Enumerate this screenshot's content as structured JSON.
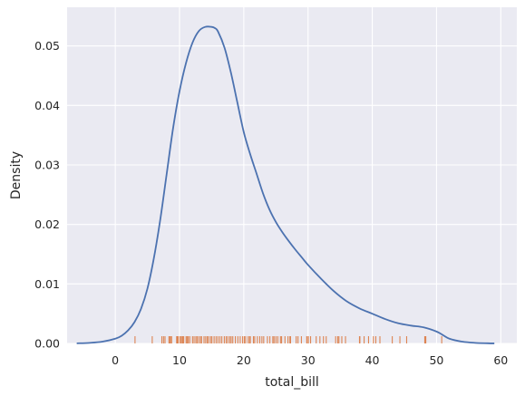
{
  "chart_data": {
    "type": "line",
    "title": "",
    "xlabel": "total_bill",
    "ylabel": "Density",
    "xlim": [
      -7.5,
      62.5
    ],
    "ylim": [
      0,
      0.0565
    ],
    "xticks": [
      0,
      10,
      20,
      30,
      40,
      50,
      60
    ],
    "yticks": [
      0.0,
      0.01,
      0.02,
      0.03,
      0.04,
      0.05
    ],
    "ytick_labels": [
      "0.00",
      "0.01",
      "0.02",
      "0.03",
      "0.04",
      "0.05"
    ],
    "grid": true,
    "style": "seaborn-darkgrid",
    "colors": {
      "background": "#EAEAF2",
      "grid": "#FFFFFF",
      "kde": "#4C72B0",
      "rug": "#DD8452"
    },
    "series": [
      {
        "kind": "kde",
        "x": [
          -6,
          -4,
          -2,
          0,
          1,
          2,
          3,
          4,
          5,
          6,
          7,
          8,
          9,
          10,
          11,
          12,
          13,
          14,
          15,
          15.5,
          16,
          17,
          18,
          19,
          20,
          21,
          22,
          23,
          24,
          25,
          26,
          27,
          28,
          29,
          30,
          32,
          34,
          36,
          38,
          40,
          42,
          44,
          46,
          48,
          50,
          51,
          52,
          54,
          56,
          58,
          59
        ],
        "y": [
          2e-05,
          0.0001,
          0.0003,
          0.0008,
          0.0013,
          0.0022,
          0.0036,
          0.0058,
          0.0092,
          0.0143,
          0.0208,
          0.0285,
          0.0362,
          0.0424,
          0.0471,
          0.0505,
          0.0525,
          0.0532,
          0.0532,
          0.053,
          0.0524,
          0.0497,
          0.0455,
          0.0405,
          0.0355,
          0.0318,
          0.0285,
          0.0252,
          0.0225,
          0.0204,
          0.0187,
          0.0172,
          0.0158,
          0.0145,
          0.0132,
          0.0109,
          0.0088,
          0.0071,
          0.0059,
          0.005,
          0.0041,
          0.0034,
          0.003,
          0.0027,
          0.002,
          0.0014,
          0.0008,
          0.0003,
          0.0001,
          3e-05,
          1e-05
        ]
      },
      {
        "kind": "rug",
        "x": [
          3.07,
          5.75,
          7.25,
          7.51,
          7.74,
          8.35,
          8.51,
          8.52,
          8.58,
          8.77,
          9.55,
          9.6,
          9.68,
          9.78,
          10.07,
          10.27,
          10.33,
          10.51,
          10.65,
          11.02,
          11.17,
          11.35,
          11.59,
          12.02,
          12.26,
          12.54,
          12.74,
          13.0,
          13.27,
          13.42,
          13.81,
          14.07,
          14.31,
          14.52,
          14.83,
          15.04,
          15.38,
          15.69,
          15.98,
          16.29,
          16.58,
          16.97,
          17.26,
          17.51,
          17.82,
          18.04,
          18.29,
          18.69,
          19.08,
          19.44,
          19.82,
          20.08,
          20.29,
          20.69,
          20.92,
          21.01,
          21.5,
          21.7,
          22.12,
          22.49,
          22.82,
          23.1,
          23.68,
          24.06,
          24.52,
          24.71,
          25.0,
          25.29,
          25.71,
          25.89,
          26.41,
          26.88,
          27.18,
          27.28,
          28.15,
          28.44,
          28.97,
          29.8,
          29.85,
          30.06,
          30.4,
          31.27,
          31.85,
          32.4,
          32.83,
          34.3,
          34.63,
          34.81,
          35.26,
          35.83,
          38.01,
          38.07,
          38.73,
          39.42,
          40.17,
          40.55,
          41.19,
          43.11,
          44.3,
          45.35,
          48.17,
          48.27,
          48.33,
          50.81
        ]
      }
    ]
  }
}
